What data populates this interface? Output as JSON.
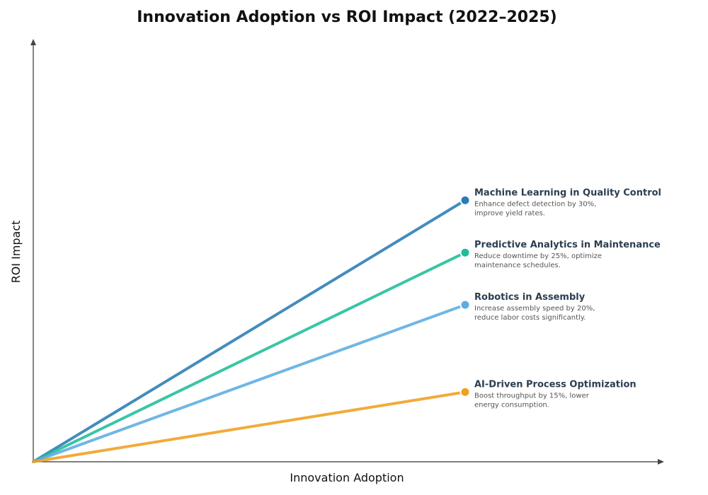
{
  "chart_data": {
    "type": "line",
    "title": "Innovation Adoption vs ROI Impact (2022–2025)",
    "xlabel": "Innovation Adoption",
    "ylabel": "ROI Impact",
    "grid": false,
    "legend": "none",
    "xlim": [
      0,
      10
    ],
    "ylim": [
      0,
      10
    ],
    "series": [
      {
        "name": "Machine Learning in Quality Control",
        "description_lines": [
          "Enhance defect detection by 30%,",
          "improve yield rates."
        ],
        "color": "#2a7db4",
        "points": [
          [
            0,
            0
          ],
          [
            10,
            7.5
          ]
        ]
      },
      {
        "name": "Predictive Analytics in Maintenance",
        "description_lines": [
          "Reduce downtime by 25%, optimize",
          "maintenance schedules."
        ],
        "color": "#1fbe99",
        "points": [
          [
            0,
            0
          ],
          [
            10,
            6
          ]
        ]
      },
      {
        "name": "Robotics in Assembly",
        "description_lines": [
          "Increase assembly speed by 20%,",
          "reduce labor costs significantly."
        ],
        "color": "#5dade2",
        "points": [
          [
            0,
            0
          ],
          [
            10,
            4.5
          ]
        ]
      },
      {
        "name": "AI-Driven Process Optimization",
        "description_lines": [
          "Boost throughput by 15%, lower",
          "energy consumption."
        ],
        "color": "#f0a020",
        "points": [
          [
            0,
            0
          ],
          [
            10,
            2
          ]
        ]
      }
    ]
  }
}
